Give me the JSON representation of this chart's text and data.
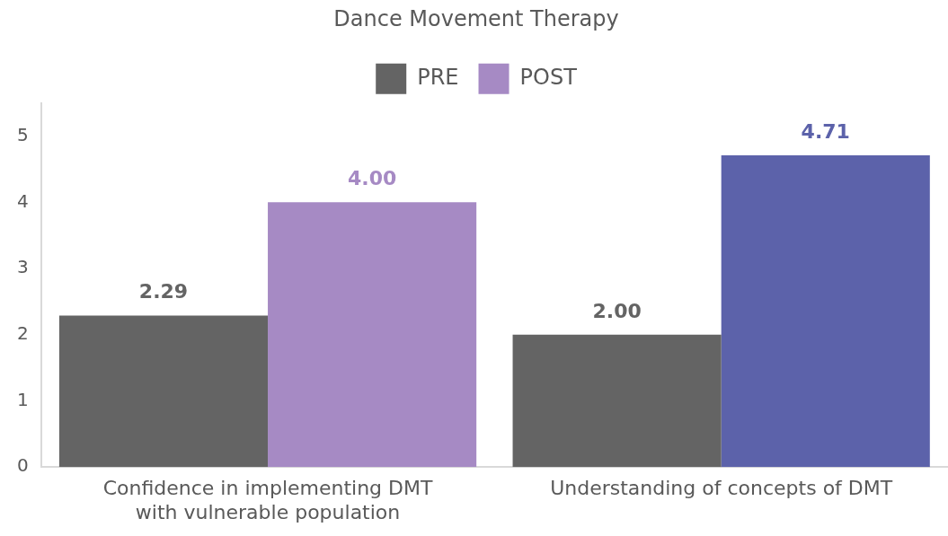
{
  "chart_data": {
    "type": "bar",
    "title": "Dance Movement Therapy",
    "categories": [
      "Confidence in implementing DMT with vulnerable population",
      "Understanding of concepts of DMT"
    ],
    "series": [
      {
        "name": "PRE",
        "color": "#646464",
        "values": [
          2.29,
          2.0
        ],
        "value_labels": [
          "2.29",
          "2.00"
        ]
      },
      {
        "name": "POST",
        "colors": [
          "#a68ac4",
          "#5c62aa"
        ],
        "values": [
          4.0,
          4.71
        ],
        "value_labels": [
          "4.00",
          "4.71"
        ]
      }
    ],
    "ylim": [
      0,
      5.5
    ],
    "yticks": [
      0,
      1,
      2,
      3,
      4,
      5
    ],
    "grid": false,
    "legend": "top"
  }
}
